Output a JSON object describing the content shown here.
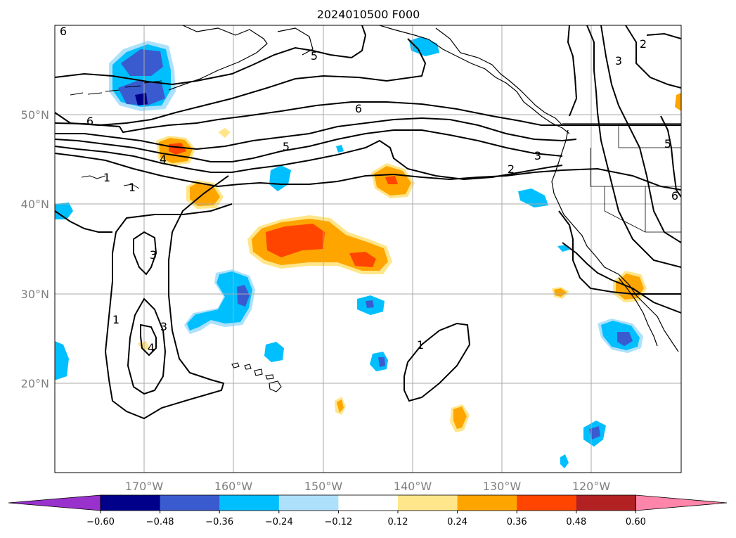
{
  "title": "2024010500 F000",
  "lat_labels": [
    "50°N",
    "40°N",
    "30°N",
    "20°N"
  ],
  "lon_labels": [
    "170°W",
    "160°W",
    "150°W",
    "140°W",
    "130°W",
    "120°W"
  ],
  "contour_labels": [
    "6",
    "5",
    "6",
    "6",
    "5",
    "4",
    "3",
    "2",
    "3",
    "5",
    "6",
    "2",
    "3",
    "1",
    "1",
    "3",
    "1",
    "3",
    "4",
    "1"
  ],
  "colorbar": {
    "tick_labels": [
      "−0.60",
      "−0.48",
      "−0.36",
      "−0.24",
      "−0.12",
      "0.12",
      "0.24",
      "0.36",
      "0.48",
      "0.60"
    ],
    "colors": [
      "#9932cc",
      "#00008b",
      "#3a5bcf",
      "#00bfff",
      "#ade1fb",
      "#ffffff",
      "#ffe68a",
      "#ffa500",
      "#ff4500",
      "#b22222",
      "#ff85aa"
    ]
  }
}
